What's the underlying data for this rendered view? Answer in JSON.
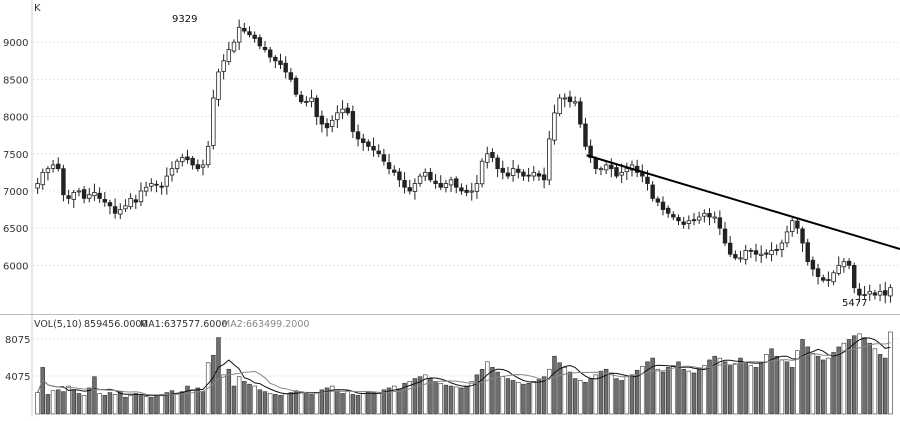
{
  "chart_data": [
    {
      "type": "candlestick",
      "period_label": "K",
      "ylim": [
        5400,
        9500
      ],
      "y_ticks": [
        "9000",
        "8500",
        "8000",
        "7500",
        "7000",
        "6500",
        "6000"
      ],
      "grid": true,
      "annotations": {
        "high": "9329",
        "low": "5477"
      },
      "trendline": {
        "from": [
          0.643,
          7480
        ],
        "to": [
          1.0,
          6220
        ]
      },
      "series_close": [
        7100,
        7250,
        7300,
        7350,
        7300,
        6950,
        6900,
        6980,
        7000,
        6900,
        6950,
        6980,
        6900,
        6850,
        6800,
        6700,
        6750,
        6800,
        6900,
        6850,
        7000,
        7050,
        7100,
        7080,
        7050,
        7200,
        7300,
        7400,
        7450,
        7420,
        7350,
        7300,
        7350,
        7600,
        8250,
        8600,
        8750,
        8900,
        9000,
        9200,
        9150,
        9100,
        9050,
        8950,
        8900,
        8800,
        8750,
        8700,
        8600,
        8500,
        8300,
        8200,
        8200,
        8250,
        8000,
        7900,
        7850,
        7950,
        8050,
        8100,
        8050,
        7800,
        7700,
        7650,
        7600,
        7550,
        7500,
        7400,
        7300,
        7250,
        7150,
        7050,
        7000,
        7100,
        7200,
        7250,
        7150,
        7100,
        7050,
        7100,
        7150,
        7050,
        7000,
        6980,
        7000,
        7100,
        7400,
        7500,
        7450,
        7300,
        7250,
        7200,
        7300,
        7250,
        7200,
        7200,
        7250,
        7200,
        7150,
        7700,
        8050,
        8250,
        8250,
        8200,
        8200,
        7900,
        7600,
        7450,
        7300,
        7300,
        7350,
        7300,
        7200,
        7250,
        7300,
        7350,
        7250,
        7200,
        7100,
        6900,
        6850,
        6750,
        6700,
        6650,
        6600,
        6550,
        6600,
        6600,
        6650,
        6700,
        6650,
        6650,
        6500,
        6300,
        6150,
        6100,
        6100,
        6200,
        6200,
        6150,
        6150,
        6150,
        6200,
        6200,
        6300,
        6450,
        6600,
        6500,
        6300,
        6050,
        5950,
        5850,
        5800,
        5800,
        5900,
        6000,
        6050,
        6000,
        5700,
        5600,
        5600,
        5650,
        5600,
        5650,
        5600,
        5700
      ]
    },
    {
      "type": "bar",
      "label": "VOL(5,10)",
      "label_value": "859456.0000",
      "ma1_label": "MA1:637577.6000",
      "ma2_label": "MA2:663499.2000",
      "y_ticks": [
        "8075",
        "4075"
      ],
      "ylim": [
        0,
        880000
      ],
      "values": [
        230000,
        500000,
        210000,
        250000,
        260000,
        240000,
        300000,
        260000,
        220000,
        200000,
        280000,
        400000,
        220000,
        200000,
        230000,
        210000,
        240000,
        180000,
        200000,
        220000,
        210000,
        190000,
        180000,
        200000,
        210000,
        230000,
        250000,
        220000,
        240000,
        300000,
        260000,
        280000,
        240000,
        550000,
        630000,
        820000,
        420000,
        480000,
        300000,
        400000,
        350000,
        320000,
        300000,
        260000,
        240000,
        220000,
        210000,
        200000,
        220000,
        230000,
        250000,
        240000,
        220000,
        210000,
        230000,
        260000,
        280000,
        300000,
        240000,
        220000,
        250000,
        210000,
        200000,
        220000,
        240000,
        230000,
        220000,
        260000,
        280000,
        300000,
        270000,
        330000,
        350000,
        380000,
        400000,
        420000,
        380000,
        350000,
        330000,
        310000,
        300000,
        290000,
        280000,
        300000,
        350000,
        420000,
        480000,
        560000,
        500000,
        450000,
        400000,
        380000,
        360000,
        340000,
        320000,
        330000,
        350000,
        370000,
        400000,
        480000,
        620000,
        550000,
        500000,
        450000,
        380000,
        360000,
        340000,
        380000,
        420000,
        460000,
        480000,
        440000,
        380000,
        360000,
        400000,
        420000,
        470000,
        510000,
        560000,
        600000,
        480000,
        450000,
        500000,
        520000,
        560000,
        480000,
        460000,
        440000,
        480000,
        520000,
        580000,
        620000,
        600000,
        560000,
        520000,
        540000,
        600000,
        560000,
        520000,
        500000,
        560000,
        640000,
        700000,
        620000,
        580000,
        560000,
        500000,
        680000,
        800000,
        720000,
        650000,
        620000,
        580000,
        600000,
        660000,
        720000,
        760000,
        800000,
        840000,
        860000,
        820000,
        760000,
        700000,
        640000,
        600000,
        880000
      ]
    }
  ]
}
